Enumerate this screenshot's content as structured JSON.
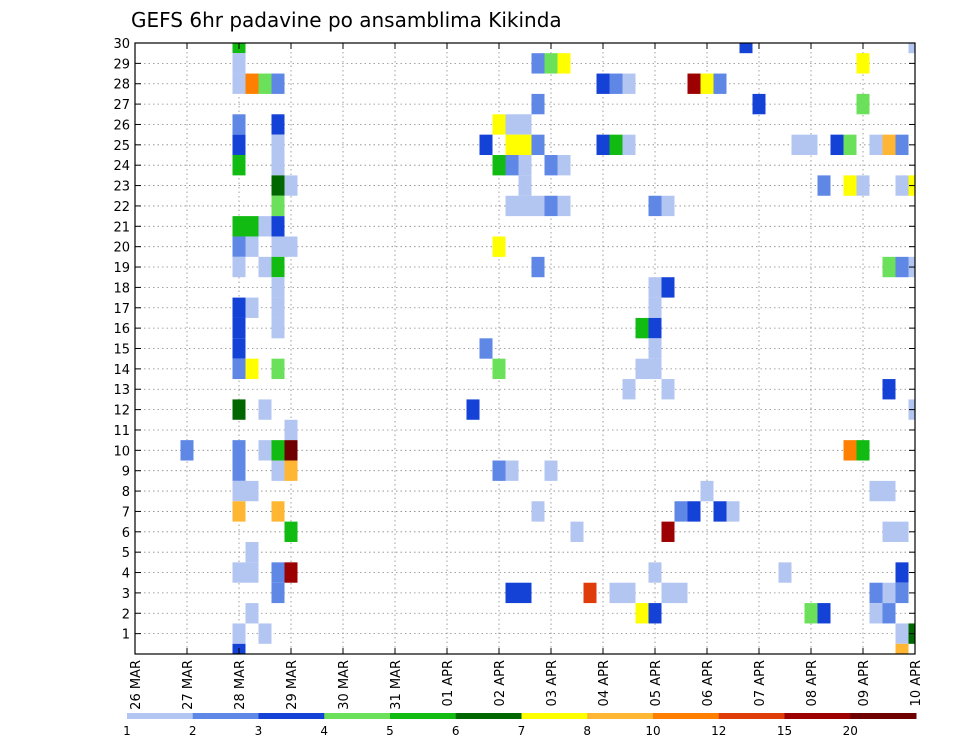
{
  "chart_data": {
    "type": "heatmap",
    "title": "GEFS 6hr padavine po ansamblima Kikinda",
    "xlabel": "",
    "ylabel": "",
    "x_tick_labels": [
      "26 MAR",
      "27 MAR",
      "28 MAR",
      "29 MAR",
      "30 MAR",
      "31 MAR",
      "01 APR",
      "02 APR",
      "03 APR",
      "04 APR",
      "05 APR",
      "06 APR",
      "07 APR",
      "08 APR",
      "09 APR",
      "10 APR"
    ],
    "x_unit": "6-hour steps",
    "xlim": [
      0,
      60
    ],
    "ylim": [
      0,
      30
    ],
    "y_ticks": [
      1,
      2,
      3,
      4,
      5,
      6,
      7,
      8,
      9,
      10,
      11,
      12,
      13,
      14,
      15,
      16,
      17,
      18,
      19,
      20,
      21,
      22,
      23,
      24,
      25,
      26,
      27,
      28,
      29,
      30
    ],
    "grid": true,
    "colorbar": {
      "position": "bottom",
      "labels": [
        "1",
        "2",
        "3",
        "4",
        "5",
        "6",
        "7",
        "8",
        "10",
        "12",
        "15",
        "20"
      ],
      "colors": [
        "#b3c6f2",
        "#5f87e6",
        "#1441d6",
        "#6be05a",
        "#11bb11",
        "#006600",
        "#ffff00",
        "#ffb733",
        "#ff7f00",
        "#e03c0a",
        "#9c0000",
        "#6e0000"
      ]
    },
    "cells": [
      [
        8,
        30,
        4
      ],
      [
        47,
        30,
        2
      ],
      [
        60,
        30,
        0
      ],
      [
        8,
        29,
        0
      ],
      [
        31,
        29,
        1
      ],
      [
        32,
        29,
        3
      ],
      [
        33,
        29,
        6
      ],
      [
        56,
        29,
        6
      ],
      [
        8,
        28,
        0
      ],
      [
        9,
        28,
        8
      ],
      [
        10,
        28,
        3
      ],
      [
        11,
        28,
        1
      ],
      [
        36,
        28,
        2
      ],
      [
        37,
        28,
        1
      ],
      [
        38,
        28,
        0
      ],
      [
        43,
        28,
        10
      ],
      [
        44,
        28,
        6
      ],
      [
        45,
        28,
        1
      ],
      [
        31,
        27,
        1
      ],
      [
        48,
        27,
        2
      ],
      [
        56,
        27,
        3
      ],
      [
        8,
        26,
        1
      ],
      [
        11,
        26,
        2
      ],
      [
        28,
        26,
        6
      ],
      [
        29,
        26,
        0
      ],
      [
        30,
        26,
        0
      ],
      [
        8,
        25,
        2
      ],
      [
        11,
        25,
        0
      ],
      [
        27,
        25,
        2
      ],
      [
        29,
        25,
        6
      ],
      [
        30,
        25,
        6
      ],
      [
        31,
        25,
        1
      ],
      [
        36,
        25,
        2
      ],
      [
        37,
        25,
        4
      ],
      [
        38,
        25,
        0
      ],
      [
        51,
        25,
        0
      ],
      [
        52,
        25,
        0
      ],
      [
        54,
        25,
        2
      ],
      [
        55,
        25,
        3
      ],
      [
        57,
        25,
        0
      ],
      [
        58,
        25,
        7
      ],
      [
        59,
        25,
        1
      ],
      [
        8,
        24,
        4
      ],
      [
        11,
        24,
        0
      ],
      [
        28,
        24,
        4
      ],
      [
        29,
        24,
        1
      ],
      [
        30,
        24,
        0
      ],
      [
        32,
        24,
        1
      ],
      [
        33,
        24,
        0
      ],
      [
        11,
        23,
        5
      ],
      [
        12,
        23,
        0
      ],
      [
        30,
        23,
        0
      ],
      [
        53,
        23,
        1
      ],
      [
        55,
        23,
        6
      ],
      [
        56,
        23,
        0
      ],
      [
        59,
        23,
        0
      ],
      [
        60,
        23,
        6
      ],
      [
        11,
        22,
        3
      ],
      [
        29,
        22,
        0
      ],
      [
        30,
        22,
        0
      ],
      [
        31,
        22,
        0
      ],
      [
        32,
        22,
        1
      ],
      [
        33,
        22,
        0
      ],
      [
        40,
        22,
        1
      ],
      [
        41,
        22,
        0
      ],
      [
        8,
        21,
        4
      ],
      [
        9,
        21,
        4
      ],
      [
        10,
        21,
        0
      ],
      [
        11,
        21,
        2
      ],
      [
        8,
        20,
        1
      ],
      [
        9,
        20,
        0
      ],
      [
        11,
        20,
        0
      ],
      [
        12,
        20,
        0
      ],
      [
        28,
        20,
        6
      ],
      [
        8,
        19,
        0
      ],
      [
        10,
        19,
        0
      ],
      [
        11,
        19,
        4
      ],
      [
        31,
        19,
        1
      ],
      [
        58,
        19,
        3
      ],
      [
        59,
        19,
        1
      ],
      [
        60,
        19,
        0
      ],
      [
        11,
        18,
        0
      ],
      [
        40,
        18,
        0
      ],
      [
        41,
        18,
        2
      ],
      [
        8,
        17,
        2
      ],
      [
        9,
        17,
        0
      ],
      [
        11,
        17,
        0
      ],
      [
        40,
        17,
        0
      ],
      [
        8,
        16,
        2
      ],
      [
        11,
        16,
        0
      ],
      [
        39,
        16,
        4
      ],
      [
        40,
        16,
        2
      ],
      [
        8,
        15,
        2
      ],
      [
        27,
        15,
        1
      ],
      [
        40,
        15,
        0
      ],
      [
        8,
        14,
        1
      ],
      [
        9,
        14,
        6
      ],
      [
        11,
        14,
        3
      ],
      [
        28,
        14,
        3
      ],
      [
        39,
        14,
        0
      ],
      [
        40,
        14,
        0
      ],
      [
        38,
        13,
        0
      ],
      [
        41,
        13,
        0
      ],
      [
        58,
        13,
        2
      ],
      [
        8,
        12,
        5
      ],
      [
        26,
        12,
        2
      ],
      [
        60,
        12,
        0
      ],
      [
        10,
        12,
        0
      ],
      [
        12,
        11,
        0
      ],
      [
        4,
        10,
        1
      ],
      [
        8,
        10,
        1
      ],
      [
        10,
        10,
        0
      ],
      [
        11,
        10,
        4
      ],
      [
        12,
        10,
        11
      ],
      [
        55,
        10,
        8
      ],
      [
        56,
        10,
        4
      ],
      [
        8,
        9,
        1
      ],
      [
        11,
        9,
        0
      ],
      [
        12,
        9,
        7
      ],
      [
        28,
        9,
        1
      ],
      [
        29,
        9,
        0
      ],
      [
        32,
        9,
        0
      ],
      [
        8,
        8,
        0
      ],
      [
        9,
        8,
        0
      ],
      [
        44,
        8,
        0
      ],
      [
        57,
        8,
        0
      ],
      [
        58,
        8,
        0
      ],
      [
        8,
        7,
        7
      ],
      [
        11,
        7,
        7
      ],
      [
        31,
        7,
        0
      ],
      [
        42,
        7,
        1
      ],
      [
        43,
        7,
        2
      ],
      [
        45,
        7,
        2
      ],
      [
        46,
        7,
        0
      ],
      [
        12,
        6,
        4
      ],
      [
        34,
        6,
        0
      ],
      [
        41,
        6,
        10
      ],
      [
        58,
        6,
        0
      ],
      [
        59,
        6,
        0
      ],
      [
        9,
        5,
        0
      ],
      [
        8,
        4,
        0
      ],
      [
        9,
        4,
        0
      ],
      [
        11,
        4,
        1
      ],
      [
        12,
        4,
        10
      ],
      [
        40,
        4,
        0
      ],
      [
        50,
        4,
        0
      ],
      [
        59,
        4,
        2
      ],
      [
        11,
        3,
        1
      ],
      [
        29,
        3,
        2
      ],
      [
        30,
        3,
        2
      ],
      [
        35,
        3,
        9
      ],
      [
        37,
        3,
        0
      ],
      [
        38,
        3,
        0
      ],
      [
        41,
        3,
        0
      ],
      [
        42,
        3,
        0
      ],
      [
        57,
        3,
        1
      ],
      [
        58,
        3,
        0
      ],
      [
        59,
        3,
        1
      ],
      [
        9,
        2,
        0
      ],
      [
        39,
        2,
        6
      ],
      [
        40,
        2,
        2
      ],
      [
        52,
        2,
        3
      ],
      [
        53,
        2,
        2
      ],
      [
        57,
        2,
        0
      ],
      [
        58,
        2,
        1
      ],
      [
        8,
        1,
        0
      ],
      [
        10,
        1,
        0
      ],
      [
        59,
        1,
        0
      ],
      [
        60,
        1,
        5
      ],
      [
        8,
        0,
        2
      ],
      [
        59,
        0,
        7
      ]
    ]
  }
}
